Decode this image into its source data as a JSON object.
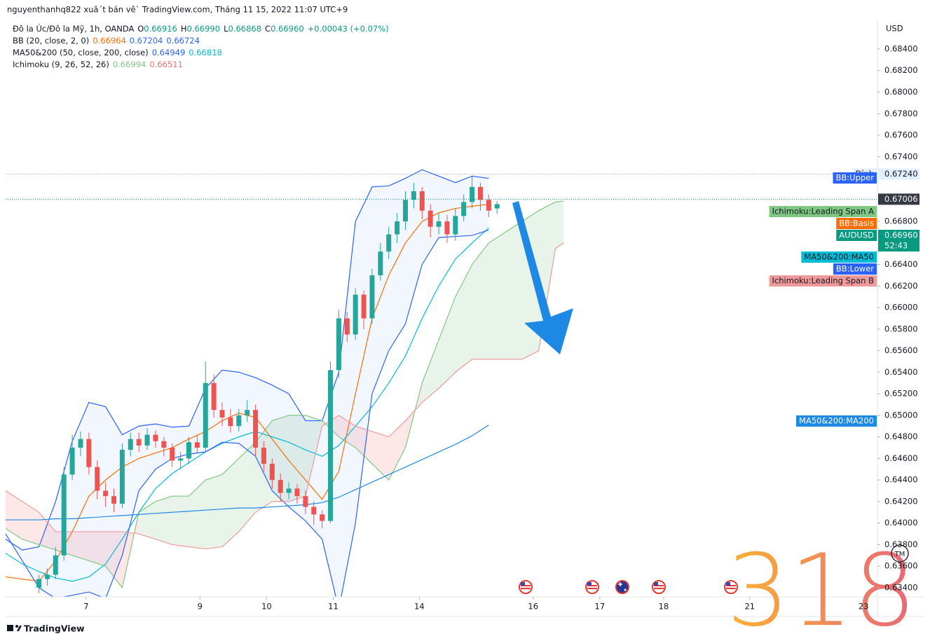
{
  "header": "nguyenthanhq822 xuâ´t bản vê` TradingView.com, Tháng 11 15, 2022 11:07 UTC+9",
  "legend": [
    {
      "title": "Đô la Úc/Đô la Mỹ, 1h, OANDA",
      "items": [
        {
          "key": "O",
          "text": "0.66916",
          "color": "#089981"
        },
        {
          "key": "H",
          "text": "0.66990",
          "color": "#089981"
        },
        {
          "key": "L",
          "text": "0.66868",
          "color": "#089981"
        },
        {
          "key": "C",
          "text": "0.66960",
          "color": "#089981"
        },
        {
          "text": "+0.00043 (+0.07%)",
          "color": "#089981"
        }
      ]
    },
    {
      "title": "BB (20, close, 2, 0)",
      "items": [
        {
          "text": "0.66964",
          "color": "#ff6d00"
        },
        {
          "text": "0.67204",
          "color": "#2962ff"
        },
        {
          "text": "0.66724",
          "color": "#2962ff"
        }
      ]
    },
    {
      "title": "MA50&200 (50, close, 200, close)",
      "items": [
        {
          "text": "0.64949",
          "color": "#2962ff"
        },
        {
          "text": "0.66818",
          "color": "#00bcd4"
        }
      ]
    },
    {
      "title": "Ichimoku (9, 26, 52, 26)",
      "items": [
        {
          "text": "0.66994",
          "color": "#81c784"
        },
        {
          "text": "0.66511",
          "color": "#e57373"
        }
      ]
    }
  ],
  "watermark": "318",
  "tm_mark": "TM",
  "footer_logo": "TradingView",
  "chart_data": {
    "type": "candlestick",
    "axis_unit": "USD",
    "xlim": [
      0,
      314
    ],
    "xticks": [
      {
        "value": 29,
        "label": "7"
      },
      {
        "value": 70,
        "label": "9"
      },
      {
        "value": 94,
        "label": "10"
      },
      {
        "value": 118,
        "label": "11"
      },
      {
        "value": 149,
        "label": "14"
      },
      {
        "value": 190,
        "label": "16"
      },
      {
        "value": 214,
        "label": "17"
      },
      {
        "value": 237,
        "label": "18"
      },
      {
        "value": 268,
        "label": "21"
      },
      {
        "value": 309,
        "label": "23"
      }
    ],
    "ylim": [
      0.63315,
      0.68673
    ],
    "yticks": [
      {
        "value": 0.684,
        "label": "0.68400"
      },
      {
        "value": 0.682,
        "label": "0.68200"
      },
      {
        "value": 0.68,
        "label": "0.68000"
      },
      {
        "value": 0.678,
        "label": "0.67800"
      },
      {
        "value": 0.676,
        "label": "0.67600"
      },
      {
        "value": 0.674,
        "label": "0.67400"
      },
      {
        "value": 0.668,
        "label": "0.66800"
      },
      {
        "value": 0.664,
        "label": "0.66400"
      },
      {
        "value": 0.662,
        "label": "0.66200"
      },
      {
        "value": 0.66,
        "label": "0.66000"
      },
      {
        "value": 0.658,
        "label": "0.65800"
      },
      {
        "value": 0.656,
        "label": "0.65600"
      },
      {
        "value": 0.654,
        "label": "0.65400"
      },
      {
        "value": 0.652,
        "label": "0.65200"
      },
      {
        "value": 0.65,
        "label": "0.65000"
      },
      {
        "value": 0.648,
        "label": "0.64800"
      },
      {
        "value": 0.646,
        "label": "0.64600"
      },
      {
        "value": 0.644,
        "label": "0.64400"
      },
      {
        "value": 0.642,
        "label": "0.64200"
      },
      {
        "value": 0.64,
        "label": "0.64000"
      },
      {
        "value": 0.638,
        "label": "0.63800"
      },
      {
        "value": 0.636,
        "label": "0.63600"
      },
      {
        "value": 0.634,
        "label": "0.63400"
      }
    ],
    "grid": false,
    "candles": {
      "name": "AUDUSD",
      "last_label": "0.66960",
      "countdown": "52:43",
      "up_color": "#26a69a",
      "down_color": "#ef5350",
      "tag_color": "#089981",
      "x": [
        12,
        15,
        18,
        21,
        24,
        27,
        30,
        33,
        36,
        39,
        42,
        45,
        48,
        51,
        54,
        57,
        60,
        63,
        66,
        69,
        72,
        75,
        78,
        81,
        84,
        87,
        90,
        93,
        96,
        99,
        102,
        105,
        108,
        111,
        114,
        117,
        120,
        123,
        126,
        129,
        132,
        135,
        138,
        141,
        144,
        147,
        150,
        153,
        156,
        159,
        162,
        165,
        168,
        171,
        174,
        177
      ],
      "open": [
        0.634,
        0.6348,
        0.6352,
        0.637,
        0.6445,
        0.647,
        0.6478,
        0.6452,
        0.643,
        0.6425,
        0.6418,
        0.6468,
        0.6478,
        0.6472,
        0.6482,
        0.6476,
        0.647,
        0.6458,
        0.646,
        0.6475,
        0.647,
        0.653,
        0.6505,
        0.6498,
        0.649,
        0.65,
        0.6505,
        0.647,
        0.6455,
        0.644,
        0.6428,
        0.6432,
        0.6425,
        0.6415,
        0.6408,
        0.6402,
        0.6542,
        0.659,
        0.6575,
        0.6612,
        0.659,
        0.663,
        0.6652,
        0.6668,
        0.668,
        0.67,
        0.6708,
        0.669,
        0.6675,
        0.668,
        0.6668,
        0.6685,
        0.6698,
        0.6712,
        0.67,
        0.6692
      ],
      "high": [
        0.6352,
        0.6358,
        0.6378,
        0.6452,
        0.6482,
        0.6485,
        0.6484,
        0.6458,
        0.6438,
        0.6432,
        0.6474,
        0.6484,
        0.6484,
        0.6488,
        0.6486,
        0.648,
        0.6474,
        0.6466,
        0.648,
        0.6482,
        0.655,
        0.6538,
        0.6512,
        0.6506,
        0.6506,
        0.6514,
        0.651,
        0.6476,
        0.646,
        0.6446,
        0.6438,
        0.6436,
        0.643,
        0.642,
        0.6412,
        0.655,
        0.6598,
        0.6596,
        0.6618,
        0.6616,
        0.6636,
        0.666,
        0.6675,
        0.6688,
        0.6708,
        0.6716,
        0.6712,
        0.6696,
        0.6688,
        0.6686,
        0.6692,
        0.6705,
        0.6722,
        0.6716,
        0.6705,
        0.6699
      ],
      "low": [
        0.6335,
        0.6342,
        0.6348,
        0.6365,
        0.644,
        0.6462,
        0.6445,
        0.6422,
        0.6415,
        0.641,
        0.6414,
        0.6462,
        0.6466,
        0.6468,
        0.647,
        0.6462,
        0.6452,
        0.645,
        0.6455,
        0.6465,
        0.6466,
        0.6498,
        0.649,
        0.6484,
        0.6485,
        0.6494,
        0.6462,
        0.6448,
        0.6432,
        0.642,
        0.6422,
        0.6418,
        0.6408,
        0.6398,
        0.6395,
        0.64,
        0.6535,
        0.6568,
        0.657,
        0.658,
        0.6585,
        0.6625,
        0.6645,
        0.666,
        0.6672,
        0.6692,
        0.6682,
        0.6665,
        0.6668,
        0.666,
        0.6662,
        0.668,
        0.6692,
        0.669,
        0.6684,
        0.6687
      ],
      "close": [
        0.6348,
        0.6352,
        0.637,
        0.6445,
        0.647,
        0.6478,
        0.6452,
        0.643,
        0.6425,
        0.6418,
        0.6468,
        0.6478,
        0.6472,
        0.6482,
        0.6476,
        0.647,
        0.6458,
        0.646,
        0.6475,
        0.647,
        0.653,
        0.6505,
        0.6498,
        0.649,
        0.65,
        0.6505,
        0.647,
        0.6455,
        0.644,
        0.6428,
        0.6432,
        0.6425,
        0.6415,
        0.6408,
        0.6402,
        0.6542,
        0.659,
        0.6575,
        0.6612,
        0.659,
        0.663,
        0.6652,
        0.6668,
        0.668,
        0.67,
        0.6708,
        0.669,
        0.6675,
        0.668,
        0.6668,
        0.6685,
        0.6698,
        0.6712,
        0.67,
        0.669,
        0.6696
      ]
    },
    "series": [
      {
        "name": "BB:Upper",
        "color": "#2962ff",
        "text_color": "#ffffff",
        "x": [
          0,
          6,
          12,
          18,
          24,
          30,
          36,
          42,
          48,
          54,
          60,
          66,
          72,
          78,
          84,
          90,
          96,
          102,
          108,
          114,
          120,
          126,
          132,
          138,
          144,
          150,
          156,
          162,
          168,
          174
        ],
        "values": [
          0.6385,
          0.6375,
          0.6378,
          0.642,
          0.6476,
          0.6512,
          0.6508,
          0.6482,
          0.649,
          0.6492,
          0.6489,
          0.649,
          0.6525,
          0.6542,
          0.654,
          0.6535,
          0.6528,
          0.652,
          0.6495,
          0.6495,
          0.654,
          0.668,
          0.6712,
          0.6713,
          0.672,
          0.6728,
          0.6722,
          0.6716,
          0.6722,
          0.672
        ]
      },
      {
        "name": "Ichimoku:Leading Span A",
        "color": "#81c784",
        "text_color": "#131722",
        "x": [
          0,
          6,
          12,
          18,
          24,
          30,
          36,
          42,
          48,
          54,
          60,
          66,
          72,
          78,
          84,
          90,
          96,
          102,
          108,
          114,
          120,
          126,
          132,
          138,
          144,
          150,
          156,
          162,
          168,
          174,
          180,
          186,
          192,
          198,
          201
        ],
        "values": [
          0.6395,
          0.6385,
          0.638,
          0.6375,
          0.637,
          0.6365,
          0.636,
          0.634,
          0.641,
          0.642,
          0.6425,
          0.6425,
          0.644,
          0.6445,
          0.646,
          0.6475,
          0.6495,
          0.65,
          0.65,
          0.6495,
          0.648,
          0.647,
          0.6455,
          0.644,
          0.647,
          0.653,
          0.657,
          0.661,
          0.664,
          0.666,
          0.667,
          0.668,
          0.669,
          0.6698,
          0.6699
        ]
      },
      {
        "name": "BB:Basis",
        "color": "#ff6d00",
        "text_color": "#ffffff",
        "x": [
          0,
          6,
          12,
          18,
          24,
          30,
          36,
          42,
          48,
          54,
          60,
          66,
          72,
          78,
          84,
          90,
          96,
          102,
          108,
          114,
          120,
          126,
          132,
          138,
          144,
          150,
          156,
          162,
          168,
          174
        ],
        "values": [
          0.635,
          0.6348,
          0.6346,
          0.6365,
          0.6392,
          0.6425,
          0.644,
          0.6452,
          0.646,
          0.6465,
          0.647,
          0.6478,
          0.6485,
          0.6495,
          0.6502,
          0.6498,
          0.6478,
          0.6458,
          0.644,
          0.6422,
          0.6448,
          0.652,
          0.659,
          0.663,
          0.666,
          0.668,
          0.6688,
          0.6692,
          0.6694,
          0.6696
        ]
      },
      {
        "name": "MA50&200:MA50",
        "color": "#00bcd4",
        "text_color": "#131722",
        "x": [
          0,
          6,
          12,
          18,
          24,
          30,
          36,
          42,
          48,
          54,
          60,
          66,
          72,
          78,
          84,
          90,
          96,
          102,
          108,
          114,
          120,
          126,
          132,
          138,
          144,
          150,
          156,
          162,
          168,
          174
        ],
        "values": [
          0.6372,
          0.6362,
          0.6355,
          0.6349,
          0.6346,
          0.635,
          0.6362,
          0.6385,
          0.641,
          0.6432,
          0.6446,
          0.6456,
          0.6466,
          0.6474,
          0.648,
          0.6485,
          0.648,
          0.6475,
          0.6468,
          0.6462,
          0.6472,
          0.649,
          0.6508,
          0.653,
          0.6555,
          0.659,
          0.662,
          0.6645,
          0.666,
          0.6674
        ]
      },
      {
        "name": "BB:Lower",
        "color": "#2962ff",
        "text_color": "#ffffff",
        "x": [
          0,
          6,
          12,
          18,
          24,
          30,
          36,
          42,
          48,
          54,
          60,
          66,
          72,
          78,
          84,
          90,
          96,
          102,
          108,
          114,
          120,
          126,
          132,
          138,
          144,
          150,
          156,
          162,
          168,
          174
        ],
        "values": [
          0.639,
          0.6365,
          0.634,
          0.633,
          0.6333,
          0.6336,
          0.633,
          0.637,
          0.643,
          0.645,
          0.646,
          0.6464,
          0.6466,
          0.6475,
          0.6474,
          0.6462,
          0.643,
          0.6415,
          0.6402,
          0.6385,
          0.632,
          0.64,
          0.652,
          0.656,
          0.6585,
          0.664,
          0.6665,
          0.6666,
          0.6667,
          0.6672
        ]
      },
      {
        "name": "Ichimoku:Leading Span B",
        "color": "#ef9a9a",
        "text_color": "#131722",
        "x": [
          0,
          6,
          12,
          18,
          24,
          30,
          36,
          42,
          48,
          54,
          60,
          66,
          72,
          78,
          84,
          90,
          96,
          102,
          108,
          114,
          120,
          126,
          132,
          138,
          144,
          150,
          156,
          162,
          168,
          174,
          180,
          186,
          192,
          198,
          201
        ],
        "values": [
          0.643,
          0.642,
          0.641,
          0.6392,
          0.6392,
          0.6392,
          0.6392,
          0.6392,
          0.639,
          0.6385,
          0.638,
          0.6378,
          0.6376,
          0.6378,
          0.6392,
          0.641,
          0.642,
          0.642,
          0.6425,
          0.649,
          0.65,
          0.649,
          0.6485,
          0.648,
          0.6495,
          0.6512,
          0.6525,
          0.654,
          0.6552,
          0.6552,
          0.6552,
          0.6552,
          0.656,
          0.6655,
          0.666
        ]
      },
      {
        "name": "MA50&200:MA200",
        "color": "#1e88e5",
        "text_color": "#ffffff",
        "x": [
          0,
          6,
          12,
          18,
          24,
          30,
          36,
          42,
          48,
          54,
          60,
          66,
          72,
          78,
          84,
          90,
          96,
          102,
          108,
          114,
          120,
          126,
          132,
          138,
          144,
          150,
          156,
          162,
          168,
          174
        ],
        "values": [
          0.6403,
          0.6403,
          0.6403,
          0.6404,
          0.6404,
          0.6405,
          0.6406,
          0.6407,
          0.6408,
          0.6409,
          0.641,
          0.6411,
          0.6412,
          0.6413,
          0.6414,
          0.6414,
          0.6415,
          0.6416,
          0.6417,
          0.6419,
          0.6424,
          0.6431,
          0.6438,
          0.6445,
          0.6452,
          0.6459,
          0.6466,
          0.6473,
          0.6481,
          0.6491
        ]
      }
    ],
    "levels": [
      {
        "label": "Đỉnh",
        "value": {
          "value": 0.6724,
          "label": "0.67240"
        },
        "color": "#9598a1",
        "tag_color": "#e3effd"
      },
      {
        "value": 0.67006,
        "color": "#089981",
        "tag_color": "#363a45"
      }
    ]
  }
}
